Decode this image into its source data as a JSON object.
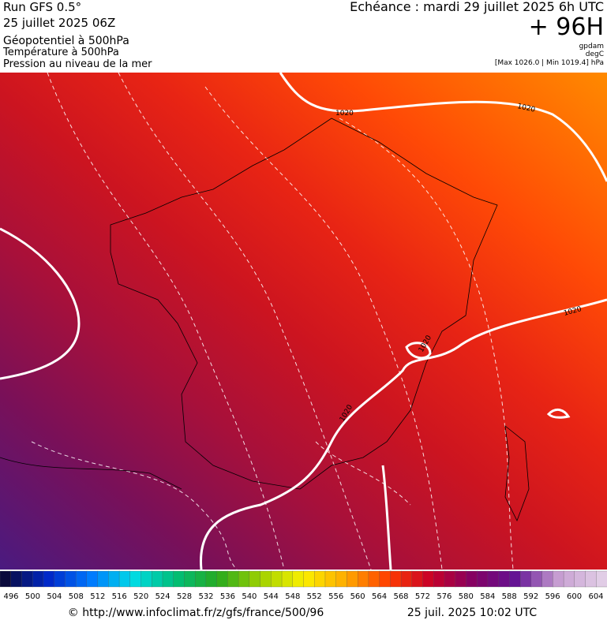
{
  "header": {
    "run": "Run GFS 0.5°",
    "date": "25 juillet 2025 06Z",
    "field1": "Géopotentiel à 500hPa",
    "field2": "Température à 500hPa",
    "field3": "Pression au niveau de la mer",
    "echeance": "Echéance : mardi 29 juillet 2025 6h UTC",
    "lead": "+ 96H",
    "unit1": "gpdam",
    "unit2": "degC",
    "range": "[Max 1026.0 | Min 1019.4] hPa"
  },
  "map": {
    "isobar_labels": [
      "1020",
      "1020",
      "1020",
      "1020",
      "1020"
    ]
  },
  "legend": {
    "labels": [
      496,
      500,
      504,
      508,
      512,
      516,
      520,
      524,
      528,
      532,
      536,
      540,
      544,
      548,
      552,
      556,
      560,
      564,
      568,
      572,
      576,
      580,
      584,
      588,
      592,
      596,
      600,
      604
    ]
  },
  "footer": {
    "url": "© http://www.infoclimat.fr/z/gfs/france/500/96",
    "timestamp": "25 juil. 2025 10:02 UTC"
  }
}
